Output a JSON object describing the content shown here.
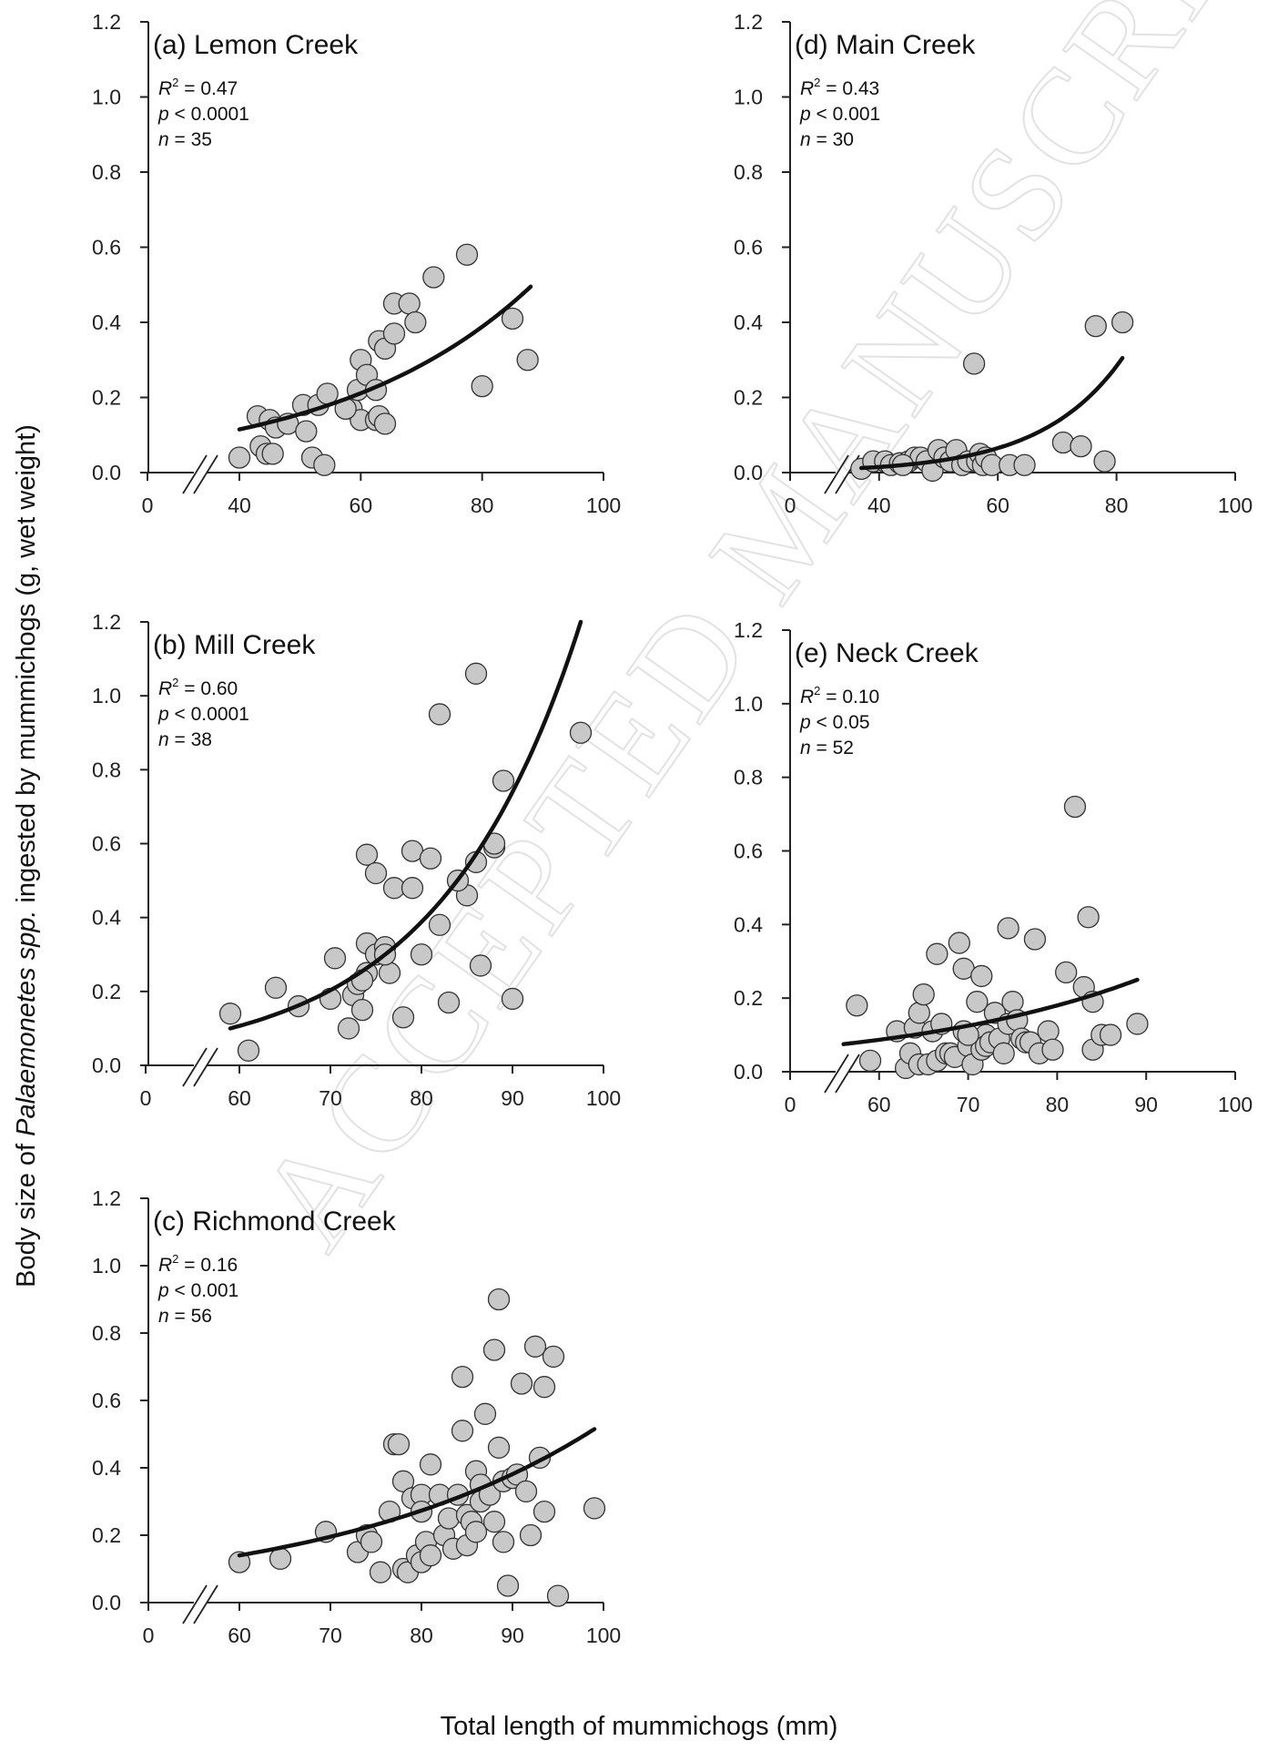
{
  "figure": {
    "x_axis_title": "Total length of mummichogs (mm)",
    "y_axis_title_prefix": "Body size of ",
    "y_axis_title_italic": "Palaemonetes spp.",
    "y_axis_title_suffix": " ingested by mummichogs (g, wet weight)",
    "watermark": "ACCEPTED MANUSCRIPT",
    "colors": {
      "point_fill": "#c8c8c8",
      "point_stroke": "#333333",
      "fit_line": "#111111",
      "axis": "#222222"
    }
  },
  "chart_data": [
    {
      "type": "scatter",
      "title": "(a) Lemon Creek",
      "stats": {
        "r2_label": "R",
        "r2_sup": "2",
        "r2_value": " = 0.47",
        "p_label": "p",
        "p_value": " < 0.0001",
        "n_label": "n",
        "n_value": " = 35"
      },
      "xticks": [
        0,
        40,
        60,
        80,
        100
      ],
      "yticks": [
        0.0,
        0.2,
        0.4,
        0.6,
        0.8,
        1.0,
        1.2
      ],
      "ytick_labels": [
        "0.0",
        "0.2",
        "0.4",
        "0.6",
        "0.8",
        "1.0",
        "1.2"
      ],
      "xlim": [
        25,
        100
      ],
      "ylim": [
        0,
        1.2
      ],
      "axis_break": true,
      "points": [
        [
          40,
          0.04
        ],
        [
          43,
          0.15
        ],
        [
          43.5,
          0.07
        ],
        [
          44.5,
          0.05
        ],
        [
          45,
          0.14
        ],
        [
          45.5,
          0.05
        ],
        [
          46,
          0.12
        ],
        [
          48,
          0.13
        ],
        [
          50.5,
          0.18
        ],
        [
          51,
          0.11
        ],
        [
          52,
          0.04
        ],
        [
          53,
          0.18
        ],
        [
          54,
          0.02
        ],
        [
          54.5,
          0.21
        ],
        [
          58.5,
          0.17
        ],
        [
          59.5,
          0.22
        ],
        [
          60,
          0.3
        ],
        [
          60,
          0.14
        ],
        [
          61,
          0.26
        ],
        [
          62.5,
          0.14
        ],
        [
          62.5,
          0.22
        ],
        [
          63,
          0.15
        ],
        [
          63,
          0.35
        ],
        [
          64,
          0.33
        ],
        [
          64,
          0.13
        ],
        [
          65.5,
          0.37
        ],
        [
          65.5,
          0.45
        ],
        [
          68,
          0.45
        ],
        [
          69,
          0.4
        ],
        [
          72,
          0.52
        ],
        [
          77.5,
          0.58
        ],
        [
          80,
          0.23
        ],
        [
          85,
          0.41
        ],
        [
          87.5,
          0.3
        ],
        [
          57.5,
          0.17
        ]
      ],
      "fit": {
        "x0": 40,
        "x1": 88,
        "y0": 0.115,
        "y1": 0.495
      }
    },
    {
      "type": "scatter",
      "title": "(b) Mill Creek",
      "stats": {
        "r2_label": "R",
        "r2_sup": "2",
        "r2_value": " = 0.60",
        "p_label": "p",
        "p_value": " < 0.0001",
        "n_label": "n",
        "n_value": " = 38"
      },
      "xticks": [
        0,
        60,
        70,
        80,
        90,
        100
      ],
      "yticks": [
        0.0,
        0.2,
        0.4,
        0.6,
        0.8,
        1.0,
        1.2
      ],
      "ytick_labels": [
        "0.0",
        "0.2",
        "0.4",
        "0.6",
        "0.8",
        "1.0",
        "1.2"
      ],
      "xlim": [
        50,
        100
      ],
      "ylim": [
        0,
        1.2
      ],
      "axis_break": true,
      "points": [
        [
          59,
          0.14
        ],
        [
          61,
          0.04
        ],
        [
          64,
          0.21
        ],
        [
          66.5,
          0.16
        ],
        [
          70,
          0.18
        ],
        [
          70.5,
          0.29
        ],
        [
          72,
          0.1
        ],
        [
          72.5,
          0.19
        ],
        [
          73,
          0.22
        ],
        [
          73.5,
          0.15
        ],
        [
          74,
          0.33
        ],
        [
          74,
          0.25
        ],
        [
          74,
          0.57
        ],
        [
          75,
          0.3
        ],
        [
          75,
          0.52
        ],
        [
          76,
          0.32
        ],
        [
          76.5,
          0.25
        ],
        [
          77,
          0.48
        ],
        [
          78,
          0.13
        ],
        [
          79,
          0.58
        ],
        [
          79,
          0.48
        ],
        [
          80,
          0.3
        ],
        [
          81,
          0.56
        ],
        [
          82,
          0.38
        ],
        [
          82,
          0.95
        ],
        [
          83,
          0.17
        ],
        [
          85,
          0.46
        ],
        [
          86,
          0.55
        ],
        [
          86,
          1.06
        ],
        [
          86.5,
          0.27
        ],
        [
          88,
          0.59
        ],
        [
          88,
          0.6
        ],
        [
          89,
          0.77
        ],
        [
          90,
          0.18
        ],
        [
          97.5,
          0.9
        ],
        [
          76,
          0.3
        ],
        [
          73.5,
          0.23
        ],
        [
          84,
          0.5
        ]
      ],
      "fit": {
        "x0": 59,
        "x1": 97.5,
        "y0": 0.1,
        "y1": 1.2
      }
    },
    {
      "type": "scatter",
      "title": "(c) Richmond Creek",
      "stats": {
        "r2_label": "R",
        "r2_sup": "2",
        "r2_value": " = 0.16",
        "p_label": "p",
        "p_value": " < 0.001",
        "n_label": "n",
        "n_value": " = 56"
      },
      "xticks": [
        0,
        60,
        70,
        80,
        90,
        100
      ],
      "yticks": [
        0.0,
        0.2,
        0.4,
        0.6,
        0.8,
        1.0,
        1.2
      ],
      "ytick_labels": [
        "0.0",
        "0.2",
        "0.4",
        "0.6",
        "0.8",
        "1.0",
        "1.2"
      ],
      "xlim": [
        50,
        100
      ],
      "ylim": [
        0,
        1.2
      ],
      "axis_break": true,
      "points": [
        [
          60,
          0.12
        ],
        [
          64.5,
          0.13
        ],
        [
          69.5,
          0.21
        ],
        [
          73,
          0.15
        ],
        [
          74,
          0.2
        ],
        [
          74.5,
          0.18
        ],
        [
          75.5,
          0.09
        ],
        [
          76.5,
          0.27
        ],
        [
          77,
          0.47
        ],
        [
          77.5,
          0.47
        ],
        [
          78,
          0.1
        ],
        [
          78,
          0.36
        ],
        [
          78.5,
          0.09
        ],
        [
          79,
          0.31
        ],
        [
          79.5,
          0.14
        ],
        [
          80,
          0.12
        ],
        [
          80,
          0.32
        ],
        [
          80,
          0.27
        ],
        [
          80.5,
          0.18
        ],
        [
          81,
          0.41
        ],
        [
          81,
          0.14
        ],
        [
          82,
          0.32
        ],
        [
          82.5,
          0.2
        ],
        [
          83,
          0.25
        ],
        [
          83.5,
          0.16
        ],
        [
          84,
          0.32
        ],
        [
          84.5,
          0.51
        ],
        [
          84.5,
          0.67
        ],
        [
          85,
          0.26
        ],
        [
          85,
          0.17
        ],
        [
          85.5,
          0.24
        ],
        [
          86,
          0.21
        ],
        [
          86,
          0.39
        ],
        [
          86.5,
          0.35
        ],
        [
          86.5,
          0.3
        ],
        [
          87,
          0.56
        ],
        [
          87.5,
          0.32
        ],
        [
          88,
          0.24
        ],
        [
          88,
          0.75
        ],
        [
          88.5,
          0.46
        ],
        [
          88.5,
          0.9
        ],
        [
          89,
          0.36
        ],
        [
          89,
          0.18
        ],
        [
          89.5,
          0.05
        ],
        [
          90,
          0.37
        ],
        [
          90.5,
          0.38
        ],
        [
          91,
          0.65
        ],
        [
          91.5,
          0.33
        ],
        [
          92,
          0.2
        ],
        [
          92.5,
          0.76
        ],
        [
          93,
          0.43
        ],
        [
          93.5,
          0.27
        ],
        [
          93.5,
          0.64
        ],
        [
          94.5,
          0.73
        ],
        [
          95,
          0.02
        ],
        [
          99,
          0.28
        ]
      ],
      "fit": {
        "x0": 60,
        "x1": 99,
        "y0": 0.14,
        "y1": 0.515
      }
    },
    {
      "type": "scatter",
      "title": "(d) Main Creek",
      "stats": {
        "r2_label": "R",
        "r2_sup": "2",
        "r2_value": " = 0.43",
        "p_label": "p",
        "p_value": " < 0.001",
        "n_label": "n",
        "n_value": " = 30"
      },
      "xticks": [
        0,
        40,
        60,
        80,
        100
      ],
      "yticks": [
        0.0,
        0.2,
        0.4,
        0.6,
        0.8,
        1.0,
        1.2
      ],
      "ytick_labels": [
        "0.0",
        "0.2",
        "0.4",
        "0.6",
        "0.8",
        "1.0",
        "1.2"
      ],
      "xlim": [
        25,
        100
      ],
      "ylim": [
        0,
        1.2
      ],
      "axis_break": true,
      "points": [
        [
          37,
          0.01
        ],
        [
          39,
          0.03
        ],
        [
          41,
          0.03
        ],
        [
          42,
          0.02
        ],
        [
          43.5,
          0.025
        ],
        [
          45,
          0.03
        ],
        [
          46,
          0.04
        ],
        [
          47,
          0.04
        ],
        [
          48,
          0.03
        ],
        [
          49,
          0.005
        ],
        [
          50,
          0.06
        ],
        [
          51,
          0.04
        ],
        [
          52,
          0.03
        ],
        [
          53,
          0.06
        ],
        [
          54,
          0.02
        ],
        [
          55,
          0.03
        ],
        [
          56,
          0.29
        ],
        [
          56.5,
          0.03
        ],
        [
          57,
          0.05
        ],
        [
          57.5,
          0.02
        ],
        [
          58,
          0.04
        ],
        [
          59,
          0.02
        ],
        [
          62,
          0.02
        ],
        [
          64.5,
          0.02
        ],
        [
          71,
          0.08
        ],
        [
          74,
          0.07
        ],
        [
          76.5,
          0.39
        ],
        [
          78,
          0.03
        ],
        [
          81,
          0.4
        ],
        [
          44,
          0.02
        ]
      ],
      "fit": {
        "x0": 37,
        "x1": 81,
        "y0": 0.012,
        "y1": 0.305
      }
    },
    {
      "type": "scatter",
      "title": "(e) Neck Creek",
      "stats": {
        "r2_label": "R",
        "r2_sup": "2",
        "r2_value": " = 0.10",
        "p_label": "p",
        "p_value": " < 0.05",
        "n_label": "n",
        "n_value": " = 52"
      },
      "xticks": [
        0,
        60,
        70,
        80,
        90,
        100
      ],
      "yticks": [
        0.0,
        0.2,
        0.4,
        0.6,
        0.8,
        1.0,
        1.2
      ],
      "ytick_labels": [
        "0.0",
        "0.2",
        "0.4",
        "0.6",
        "0.8",
        "1.0",
        "1.2"
      ],
      "xlim": [
        50,
        100
      ],
      "ylim": [
        0,
        1.2
      ],
      "axis_break": true,
      "points": [
        [
          57.5,
          0.18
        ],
        [
          59,
          0.03
        ],
        [
          62,
          0.11
        ],
        [
          63,
          0.01
        ],
        [
          63.5,
          0.05
        ],
        [
          64,
          0.12
        ],
        [
          64.5,
          0.02
        ],
        [
          64.5,
          0.16
        ],
        [
          65,
          0.21
        ],
        [
          65.5,
          0.02
        ],
        [
          66,
          0.11
        ],
        [
          66.5,
          0.03
        ],
        [
          66.5,
          0.32
        ],
        [
          67,
          0.13
        ],
        [
          67.5,
          0.05
        ],
        [
          68,
          0.05
        ],
        [
          68.5,
          0.04
        ],
        [
          69,
          0.35
        ],
        [
          69.5,
          0.11
        ],
        [
          69.5,
          0.28
        ],
        [
          70,
          0.07
        ],
        [
          70.5,
          0.02
        ],
        [
          71,
          0.19
        ],
        [
          71.5,
          0.06
        ],
        [
          71.5,
          0.26
        ],
        [
          72,
          0.1
        ],
        [
          72,
          0.07
        ],
        [
          72.5,
          0.08
        ],
        [
          73,
          0.16
        ],
        [
          73.5,
          0.09
        ],
        [
          74,
          0.05
        ],
        [
          74.5,
          0.39
        ],
        [
          74.5,
          0.13
        ],
        [
          75,
          0.19
        ],
        [
          75.5,
          0.14
        ],
        [
          76,
          0.09
        ],
        [
          76.5,
          0.08
        ],
        [
          77,
          0.08
        ],
        [
          77.5,
          0.36
        ],
        [
          78,
          0.05
        ],
        [
          79,
          0.11
        ],
        [
          79.5,
          0.06
        ],
        [
          81,
          0.27
        ],
        [
          82,
          0.72
        ],
        [
          83,
          0.23
        ],
        [
          83.5,
          0.42
        ],
        [
          84,
          0.06
        ],
        [
          84,
          0.19
        ],
        [
          85,
          0.1
        ],
        [
          86,
          0.1
        ],
        [
          89,
          0.13
        ],
        [
          70,
          0.1
        ]
      ],
      "fit": {
        "x0": 56,
        "x1": 89,
        "y0": 0.075,
        "y1": 0.25
      }
    }
  ]
}
